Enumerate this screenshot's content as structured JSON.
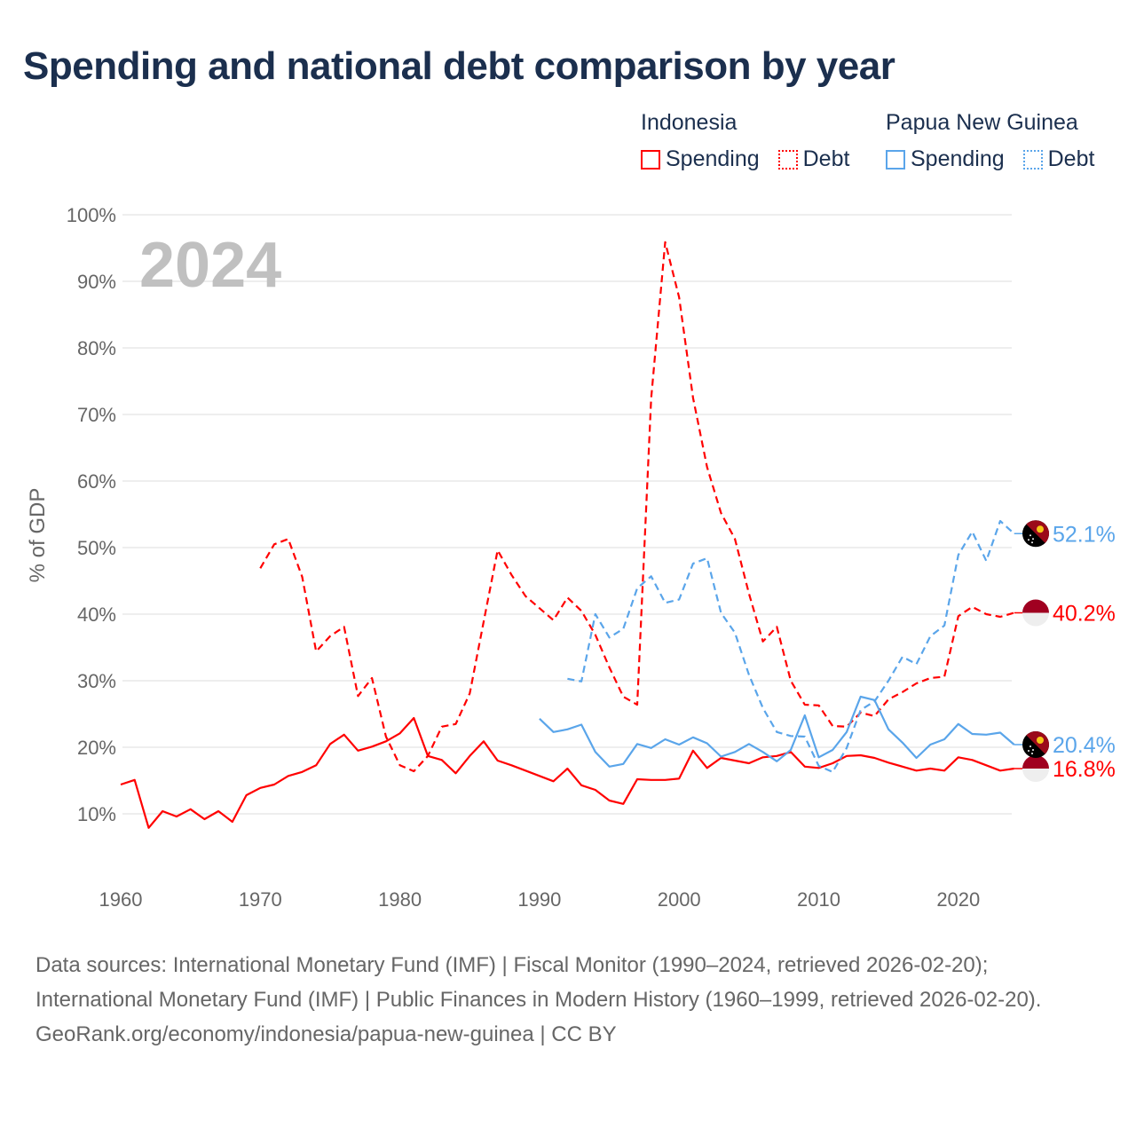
{
  "title": "Spending and national debt comparison by year",
  "legend": [
    {
      "group": "Indonesia",
      "items": [
        {
          "label": "Spending",
          "style": "solid"
        },
        {
          "label": "Debt",
          "style": "dotted"
        }
      ],
      "color": "#ff0000"
    },
    {
      "group": "Papua New Guinea",
      "items": [
        {
          "label": "Spending",
          "style": "solid"
        },
        {
          "label": "Debt",
          "style": "dotted"
        }
      ],
      "color": "#5aa5ea"
    }
  ],
  "chart_data": {
    "type": "line",
    "title": "Spending and national debt comparison by year",
    "xlabel": "",
    "ylabel": "% of GDP",
    "xlim": [
      1960,
      2024
    ],
    "ylim": [
      0,
      100
    ],
    "yticks": [
      "10%",
      "20%",
      "30%",
      "40%",
      "50%",
      "60%",
      "70%",
      "80%",
      "90%",
      "100%"
    ],
    "ytick_values": [
      10,
      20,
      30,
      40,
      50,
      60,
      70,
      80,
      90,
      100
    ],
    "xticks": [
      "1960",
      "1970",
      "1980",
      "1990",
      "2000",
      "2010",
      "2020"
    ],
    "xtick_values": [
      1960,
      1970,
      1980,
      1990,
      2000,
      2010,
      2020
    ],
    "year_annotation": "2024",
    "grid": true,
    "series": [
      {
        "name": "Indonesia Spending",
        "color": "#ff0000",
        "dash": false,
        "start": 1960,
        "end_label": "16.8%",
        "flag": "indonesia",
        "values": [
          14.4,
          15.1,
          7.9,
          10.4,
          9.6,
          10.7,
          9.2,
          10.4,
          8.8,
          12.8,
          13.9,
          14.4,
          15.7,
          16.3,
          17.3,
          20.5,
          21.9,
          19.5,
          20.1,
          20.9,
          22.1,
          24.4,
          18.7,
          18.1,
          16.1,
          18.7,
          20.9,
          18.0,
          17.3,
          16.5,
          15.7,
          14.9,
          16.8,
          14.3,
          13.6,
          12.0,
          11.5,
          15.2,
          15.1,
          15.1,
          15.3,
          19.5,
          16.9,
          18.4,
          18.0,
          17.6,
          18.5,
          18.7,
          19.3,
          17.1,
          16.9,
          17.6,
          18.7,
          18.8,
          18.4,
          17.7,
          17.1,
          16.5,
          16.8,
          16.5,
          18.5,
          18.1,
          17.3,
          16.5,
          16.8
        ]
      },
      {
        "name": "Indonesia Debt",
        "color": "#ff0000",
        "dash": true,
        "start": 1970,
        "end_label": "40.2%",
        "flag": "indonesia",
        "values": [
          46.9,
          50.5,
          51.3,
          45.6,
          34.4,
          36.7,
          38.1,
          27.7,
          30.4,
          21.6,
          17.3,
          16.4,
          18.7,
          23.1,
          23.5,
          28.1,
          38.9,
          49.6,
          45.9,
          42.7,
          40.9,
          39.1,
          42.5,
          40.5,
          36.9,
          32.0,
          27.6,
          26.4,
          72.4,
          95.9,
          87.6,
          72.5,
          62.1,
          55.2,
          51.3,
          43.1,
          35.9,
          38.1,
          30.0,
          26.4,
          26.3,
          23.2,
          23.1,
          25.2,
          24.7,
          27.2,
          28.3,
          29.6,
          30.4,
          30.6,
          39.7,
          41.1,
          40.0,
          39.6,
          40.2
        ]
      },
      {
        "name": "Papua New Guinea Spending",
        "color": "#5aa5ea",
        "dash": false,
        "start": 1990,
        "end_label": "20.4%",
        "flag": "png",
        "values": [
          24.3,
          22.3,
          22.7,
          23.4,
          19.3,
          17.1,
          17.5,
          20.5,
          19.9,
          21.2,
          20.4,
          21.5,
          20.6,
          18.6,
          19.3,
          20.5,
          19.3,
          17.9,
          19.6,
          24.8,
          18.5,
          19.6,
          22.3,
          27.6,
          27.1,
          22.7,
          20.7,
          18.4,
          20.4,
          21.2,
          23.5,
          22.0,
          21.9,
          22.2,
          20.4
        ]
      },
      {
        "name": "Papua New Guinea Debt",
        "color": "#5aa5ea",
        "dash": true,
        "start": 1992,
        "end_label": "52.1%",
        "flag": "png",
        "values": [
          30.3,
          29.9,
          40.0,
          36.5,
          37.8,
          43.9,
          45.7,
          41.7,
          42.2,
          47.6,
          48.4,
          40.2,
          37.2,
          30.9,
          25.9,
          22.3,
          21.7,
          21.6,
          17.2,
          16.3,
          19.9,
          25.6,
          26.9,
          30.0,
          33.6,
          32.5,
          36.7,
          38.3,
          48.9,
          52.4,
          48.0,
          54.0,
          52.1
        ]
      }
    ]
  },
  "source": {
    "line1": "Data sources: International Monetary Fund (IMF) | Fiscal Monitor (1990–2024, retrieved 2026-02-20); International Monetary Fund (IMF) | Public Finances in Modern History (1960–1999, retrieved 2026-02-20).",
    "line2": "GeoRank.org/economy/indonesia/papua-new-guinea | CC BY"
  }
}
